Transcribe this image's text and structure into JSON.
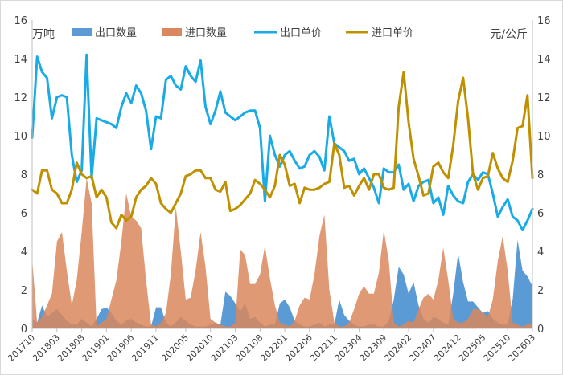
{
  "chart_data": {
    "type": "area+line",
    "left_unit": "万吨",
    "right_unit": "元/公斤",
    "ylim_left": [
      0,
      16
    ],
    "ylim_right": [
      0,
      16
    ],
    "yticks_left": [
      "0",
      "2",
      "4",
      "6",
      "8",
      "10",
      "12",
      "14",
      "16"
    ],
    "yticks_right": [
      "0",
      "2",
      "4",
      "6",
      "8",
      "10",
      "12",
      "14",
      "16"
    ],
    "x_tick_labels": [
      "201710",
      "201803",
      "201808",
      "201901",
      "201906",
      "201911",
      "202005",
      "202010",
      "202103",
      "202108",
      "202201",
      "202206",
      "202211",
      "202304",
      "202309",
      "202402",
      "202407",
      "202412",
      "202505",
      "202510",
      "202603"
    ],
    "x_tick_indices": [
      0,
      5,
      10,
      15,
      20,
      25,
      31,
      36,
      41,
      46,
      51,
      56,
      61,
      66,
      71,
      76,
      81,
      86,
      91,
      96,
      101
    ],
    "grid": false,
    "legend_position": "top",
    "series": [
      {
        "name": "出口数量",
        "kind": "area",
        "axis": "left",
        "color": "#5b9bd5",
        "values": [
          0.5,
          0.3,
          1.2,
          0.6,
          0.8,
          1.0,
          0.7,
          0.4,
          0.2,
          0.2,
          0.5,
          0.3,
          0.1,
          0.5,
          1.0,
          1.1,
          0.8,
          0.4,
          0.2,
          0.4,
          0.5,
          0.3,
          0.2,
          0.1,
          0.1,
          1.1,
          1.1,
          0.3,
          0.1,
          0.3,
          0.6,
          0.4,
          0.2,
          0.1,
          0.1,
          0.1,
          0.2,
          0.3,
          0.2,
          1.9,
          1.7,
          1.3,
          0.9,
          1.3,
          0.5,
          0.6,
          0.3,
          0.1,
          0.2,
          0.2,
          1.3,
          1.5,
          1.1,
          0.4,
          0.2,
          0.1,
          0.1,
          0.2,
          0.3,
          0.1,
          0.2,
          0.2,
          1.5,
          0.7,
          0.4,
          0.2,
          0.1,
          0.1,
          0.2,
          0.2,
          0.1,
          0.1,
          0.4,
          1.5,
          3.2,
          2.8,
          1.8,
          2.4,
          1.2,
          0.5,
          0.3,
          0.6,
          0.5,
          0.3,
          0.2,
          1.8,
          3.9,
          2.4,
          1.4,
          1.4,
          1.1,
          0.8,
          0.9,
          0.5,
          0.3,
          0.2,
          0.2,
          1.5,
          4.6,
          3.0,
          2.7,
          2.2
        ]
      },
      {
        "name": "进口数量",
        "kind": "area",
        "axis": "left",
        "color": "#d9875c",
        "values": [
          3.6,
          0.3,
          0.6,
          1.2,
          1.8,
          4.5,
          5.0,
          3.0,
          1.2,
          2.5,
          5.0,
          7.8,
          6.5,
          0.1,
          0.3,
          0.5,
          1.5,
          2.5,
          4.5,
          7.0,
          5.8,
          5.6,
          5.2,
          2.5,
          0.2,
          0.1,
          0.3,
          0.8,
          2.8,
          6.3,
          4.0,
          1.5,
          1.6,
          3.0,
          5.0,
          3.2,
          0.5,
          0.3,
          0.2,
          0.1,
          0.1,
          0.3,
          4.1,
          3.8,
          2.3,
          2.3,
          2.8,
          4.3,
          2.6,
          1.2,
          0.3,
          0.2,
          0.1,
          0.4,
          1.2,
          1.6,
          1.5,
          2.8,
          4.8,
          5.9,
          2.0,
          0.3,
          0.1,
          0.1,
          0.3,
          1.0,
          1.8,
          2.2,
          1.8,
          1.8,
          2.9,
          5.1,
          3.5,
          0.3,
          0.1,
          0.2,
          0.4,
          0.3,
          1.0,
          1.6,
          1.8,
          1.5,
          2.5,
          4.2,
          2.5,
          0.5,
          0.3,
          0.3,
          0.5,
          1.0,
          1.0,
          0.8,
          0.6,
          1.5,
          3.5,
          4.8,
          3.0,
          0.3,
          0.2,
          0.1,
          0.2,
          0.3
        ]
      },
      {
        "name": "出口单价",
        "kind": "line",
        "axis": "right",
        "color": "#1aabe6",
        "values": [
          9.9,
          14.1,
          13.3,
          13.0,
          10.9,
          12.0,
          12.1,
          12.0,
          9.0,
          7.6,
          8.2,
          14.2,
          7.8,
          10.9,
          10.8,
          10.7,
          10.6,
          10.4,
          11.5,
          12.2,
          11.7,
          12.6,
          12.2,
          11.3,
          9.3,
          11.0,
          10.9,
          12.9,
          13.1,
          12.6,
          12.4,
          13.6,
          13.1,
          12.8,
          13.9,
          11.5,
          10.6,
          11.3,
          12.3,
          11.2,
          11.0,
          10.8,
          11.0,
          11.2,
          11.3,
          11.3,
          10.4,
          6.6,
          10.0,
          9.0,
          8.4,
          9.0,
          9.2,
          8.7,
          8.3,
          8.4,
          9.0,
          9.2,
          8.9,
          8.2,
          11.0,
          9.6,
          9.4,
          9.2,
          8.7,
          8.8,
          8.0,
          8.3,
          7.8,
          7.3,
          6.5,
          8.3,
          8.1,
          8.1,
          8.5,
          7.2,
          7.5,
          6.6,
          7.4,
          7.6,
          7.7,
          6.5,
          6.8,
          5.9,
          7.4,
          6.9,
          6.6,
          6.5,
          7.6,
          8.0,
          7.7,
          8.1,
          8.0,
          7.0,
          5.8,
          6.3,
          6.7,
          5.8,
          5.6,
          5.1,
          5.6,
          6.2
        ]
      },
      {
        "name": "进口单价",
        "kind": "line",
        "axis": "right",
        "color": "#bf9000",
        "values": [
          7.2,
          7.0,
          8.2,
          8.2,
          7.2,
          7.0,
          6.5,
          6.5,
          7.2,
          8.6,
          8.0,
          7.8,
          7.9,
          6.8,
          7.2,
          6.8,
          5.5,
          5.2,
          5.9,
          5.6,
          5.8,
          6.8,
          7.2,
          7.4,
          7.8,
          7.5,
          6.5,
          6.2,
          6.0,
          6.5,
          7.0,
          7.9,
          8.0,
          8.2,
          8.2,
          7.8,
          7.8,
          7.2,
          7.1,
          7.6,
          6.1,
          6.2,
          6.4,
          6.7,
          7.0,
          7.7,
          7.5,
          7.2,
          6.8,
          7.4,
          9.0,
          8.5,
          7.4,
          7.5,
          6.5,
          7.3,
          7.2,
          7.2,
          7.3,
          7.5,
          7.6,
          9.6,
          9.0,
          7.3,
          7.4,
          6.9,
          7.4,
          7.8,
          7.2,
          8.0,
          8.0,
          7.3,
          7.2,
          7.3,
          11.5,
          13.3,
          10.7,
          8.8,
          7.9,
          6.9,
          7.0,
          8.4,
          8.6,
          8.1,
          7.8,
          9.5,
          11.8,
          13.0,
          10.9,
          8.0,
          7.2,
          7.8,
          7.9,
          9.1,
          8.3,
          7.8,
          7.6,
          8.7,
          10.4,
          10.5,
          12.1,
          7.8
        ]
      }
    ]
  }
}
